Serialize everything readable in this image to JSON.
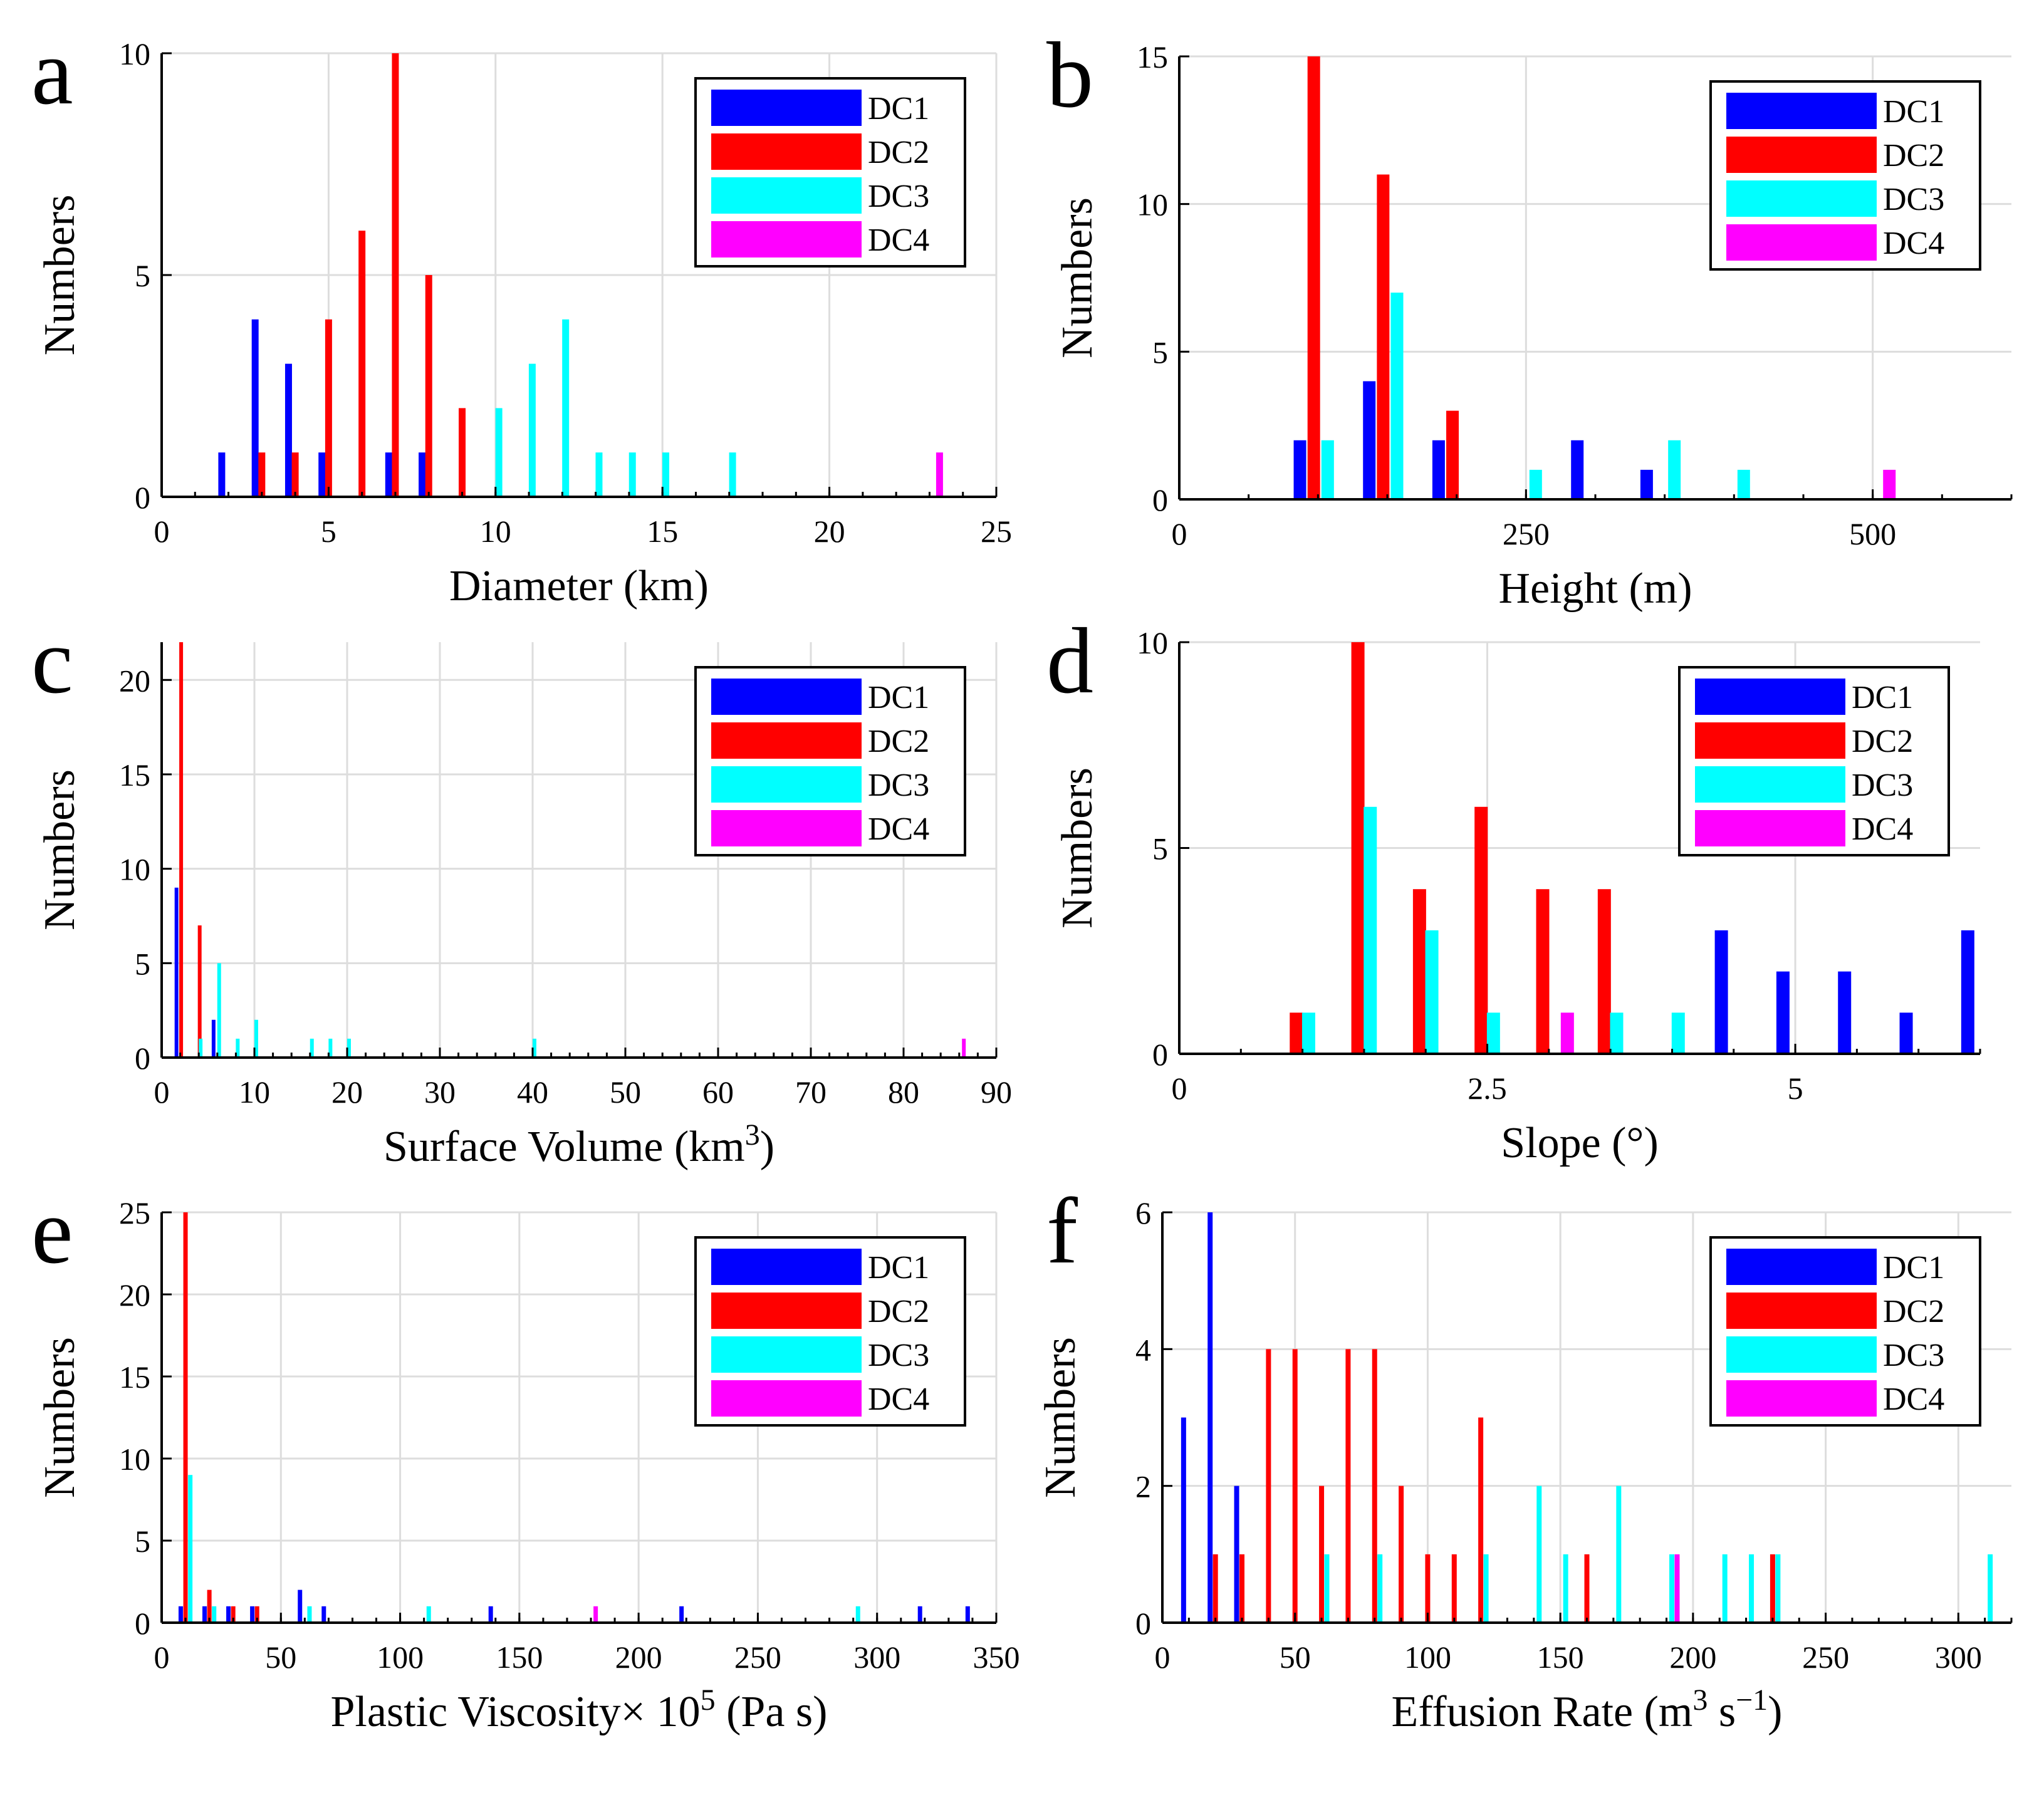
{
  "legend": [
    "DC1",
    "DC2",
    "DC3",
    "DC4"
  ],
  "colors": {
    "DC1": "#0000ff",
    "DC2": "#ff0000",
    "DC3": "#00ffff",
    "DC4": "#ff00ff"
  },
  "chart_data": [
    {
      "panel": "a",
      "type": "bar",
      "xlabel": "Diameter (km)",
      "ylabel": "Numbers",
      "xlim": [
        0,
        25
      ],
      "ylim": [
        0,
        10
      ],
      "xticks": [
        0,
        5,
        10,
        15,
        20,
        25
      ],
      "yticks": [
        0,
        5,
        10
      ],
      "legend_position": "top-right",
      "series": [
        {
          "name": "DC1",
          "x": [
            1.8,
            2.8,
            3.8,
            4.8,
            6.8,
            7.8
          ],
          "values": [
            1,
            4,
            3,
            1,
            1,
            1
          ]
        },
        {
          "name": "DC2",
          "x": [
            3.0,
            4.0,
            5.0,
            6.0,
            7.0,
            8.0,
            9.0
          ],
          "values": [
            1,
            1,
            4,
            6,
            10,
            5,
            2
          ]
        },
        {
          "name": "DC3",
          "x": [
            10.1,
            11.1,
            12.1,
            13.1,
            14.1,
            15.1,
            17.1
          ],
          "values": [
            2,
            3,
            4,
            1,
            1,
            1,
            1
          ]
        },
        {
          "name": "DC4",
          "x": [
            23.3
          ],
          "values": [
            1
          ]
        }
      ]
    },
    {
      "panel": "b",
      "type": "bar",
      "xlabel": "Height (m)",
      "ylabel": "Numbers",
      "xlim": [
        0,
        600
      ],
      "ylim": [
        0,
        15
      ],
      "xticks": [
        0,
        250,
        500
      ],
      "yticks": [
        0,
        5,
        10,
        15
      ],
      "legend_position": "top-right",
      "series": [
        {
          "name": "DC1",
          "x": [
            87,
            137,
            187,
            287,
            337
          ],
          "values": [
            2,
            4,
            2,
            2,
            1
          ]
        },
        {
          "name": "DC2",
          "x": [
            97,
            147,
            197
          ],
          "values": [
            15,
            11,
            3
          ]
        },
        {
          "name": "DC3",
          "x": [
            107,
            157,
            257,
            357,
            407
          ],
          "values": [
            2,
            7,
            1,
            2,
            1
          ]
        },
        {
          "name": "DC4",
          "x": [
            512
          ],
          "values": [
            1
          ]
        }
      ]
    },
    {
      "panel": "c",
      "type": "bar",
      "xlabel": "Surface Volume (km",
      "xlabel_sup": "3",
      "xlabel_end": ")",
      "ylabel": "Numbers",
      "xlim": [
        0,
        90
      ],
      "ylim": [
        0,
        22
      ],
      "xticks": [
        0,
        10,
        20,
        30,
        40,
        50,
        60,
        70,
        80,
        90
      ],
      "yticks": [
        0,
        5,
        10,
        15,
        20
      ],
      "legend_position": "top-right",
      "series": [
        {
          "name": "DC1",
          "x": [
            1.6,
            5.6
          ],
          "values": [
            9,
            2
          ]
        },
        {
          "name": "DC2",
          "x": [
            2.1,
            4.1
          ],
          "values": [
            22,
            7
          ]
        },
        {
          "name": "DC3",
          "x": [
            4.2,
            6.2,
            8.2,
            10.2,
            16.2,
            18.2,
            20.2,
            40.2
          ],
          "values": [
            1,
            5,
            1,
            2,
            1,
            1,
            1,
            1
          ]
        },
        {
          "name": "DC4",
          "x": [
            86.5
          ],
          "values": [
            1
          ]
        }
      ]
    },
    {
      "panel": "d",
      "type": "bar",
      "xlabel": "Slope (°)",
      "ylabel": "Numbers",
      "xlim": [
        0,
        6.5
      ],
      "ylim": [
        0,
        10
      ],
      "xticks": [
        0,
        2.5,
        5
      ],
      "yticks": [
        0,
        5,
        10
      ],
      "legend_position": "top-right",
      "series": [
        {
          "name": "DC1",
          "x": [
            4.4,
            4.9,
            5.4,
            5.9,
            6.4
          ],
          "values": [
            3,
            2,
            2,
            1,
            3
          ]
        },
        {
          "name": "DC2",
          "x": [
            0.95,
            1.45,
            1.95,
            2.45,
            2.95,
            3.45
          ],
          "values": [
            1,
            10,
            4,
            6,
            4,
            4
          ]
        },
        {
          "name": "DC3",
          "x": [
            1.05,
            1.55,
            2.05,
            2.55,
            3.55,
            4.05
          ],
          "values": [
            1,
            6,
            3,
            1,
            1,
            1
          ]
        },
        {
          "name": "DC4",
          "x": [
            3.15
          ],
          "values": [
            1
          ]
        }
      ]
    },
    {
      "panel": "e",
      "type": "bar",
      "xlabel": "Plastic Viscosity",
      "xlabel_mid": "× 10",
      "xlabel_sup": "5",
      "xlabel_end": " (Pa s)",
      "ylabel": "Numbers",
      "xlim": [
        0,
        350
      ],
      "ylim": [
        0,
        25
      ],
      "xticks": [
        0,
        50,
        100,
        150,
        200,
        250,
        300,
        350
      ],
      "yticks": [
        0,
        5,
        10,
        15,
        20,
        25
      ],
      "legend_position": "top-right",
      "series": [
        {
          "name": "DC1",
          "x": [
            8,
            18,
            28,
            38,
            58,
            68,
            138,
            218,
            318,
            338
          ],
          "values": [
            1,
            1,
            1,
            1,
            2,
            1,
            1,
            1,
            1,
            1
          ]
        },
        {
          "name": "DC2",
          "x": [
            10,
            20,
            30,
            40
          ],
          "values": [
            25,
            2,
            1,
            1
          ]
        },
        {
          "name": "DC3",
          "x": [
            12,
            22,
            62,
            112,
            292
          ],
          "values": [
            9,
            1,
            1,
            1,
            1
          ]
        },
        {
          "name": "DC4",
          "x": [
            182
          ],
          "values": [
            1
          ]
        }
      ]
    },
    {
      "panel": "f",
      "type": "bar",
      "xlabel": "Effusion Rate (m",
      "xlabel_sup": "3",
      "xlabel_mid": " s",
      "xlabel_sup2": "−1",
      "xlabel_end": ")",
      "ylabel": "Numbers",
      "xlim": [
        0,
        320
      ],
      "ylim": [
        0,
        6
      ],
      "xticks": [
        0,
        50,
        100,
        150,
        200,
        250,
        300
      ],
      "yticks": [
        0,
        2,
        4,
        6
      ],
      "legend_position": "top-right",
      "series": [
        {
          "name": "DC1",
          "x": [
            8,
            18,
            28
          ],
          "values": [
            3,
            6,
            2
          ]
        },
        {
          "name": "DC2",
          "x": [
            20,
            30,
            40,
            50,
            60,
            70,
            80,
            90,
            100,
            110,
            120,
            160,
            230
          ],
          "values": [
            1,
            1,
            4,
            4,
            2,
            4,
            4,
            2,
            1,
            1,
            3,
            1,
            1
          ]
        },
        {
          "name": "DC3",
          "x": [
            62,
            82,
            122,
            142,
            152,
            172,
            192,
            212,
            222,
            232,
            312
          ],
          "values": [
            1,
            1,
            1,
            2,
            1,
            2,
            1,
            1,
            1,
            1,
            1
          ]
        },
        {
          "name": "DC4",
          "x": [
            194
          ],
          "values": [
            1
          ]
        }
      ]
    }
  ]
}
